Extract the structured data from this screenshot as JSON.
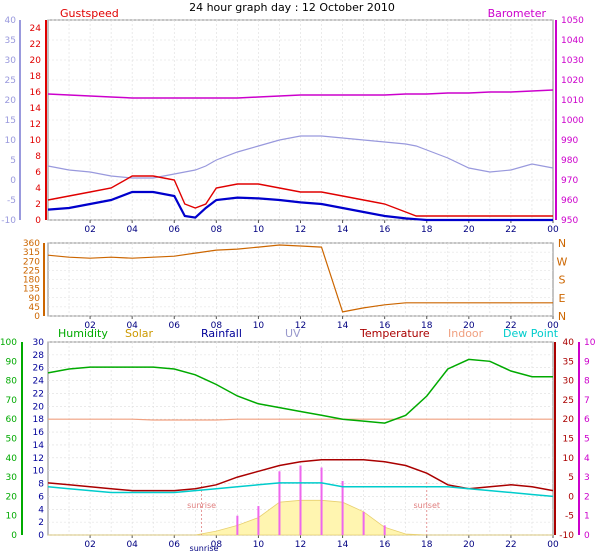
{
  "title": "24 hour graph day : 12 October 2010",
  "colors": {
    "gust": "#e00000",
    "wind": "#0000cc",
    "baro": "#cc00cc",
    "temp_blue_axis": "#9999dd",
    "wdir": "#cc6600",
    "humidity": "#00aa00",
    "solar": "#cc9900",
    "rainfall": "#000099",
    "uv": "#9999cc",
    "temperature": "#aa0000",
    "indoor": "#f0a080",
    "dewpoint": "#00cccc",
    "uv_axis": "#cc00cc",
    "grid": "#dddddd"
  },
  "chart_data": [
    {
      "type": "line",
      "title": "24 hour graph day : 12 October 2010",
      "legend": [
        "Gustspeed",
        "Barometer"
      ],
      "x": [
        0,
        1,
        2,
        3,
        4,
        5,
        6,
        6.5,
        7,
        7.5,
        8,
        9,
        10,
        11,
        12,
        13,
        14,
        15,
        16,
        17,
        17.5,
        18,
        19,
        20,
        21,
        22,
        23,
        24
      ],
      "x_ticks": [
        "02",
        "04",
        "06",
        "08",
        "10",
        "12",
        "14",
        "16",
        "18",
        "20",
        "22",
        "00"
      ],
      "left_axis_a": {
        "ticks": [
          -10,
          -5,
          0,
          5,
          10,
          15,
          20,
          25,
          30,
          35,
          40
        ],
        "ylim": [
          -10,
          40
        ]
      },
      "left_axis_b": {
        "ticks": [
          0,
          2,
          4,
          6,
          8,
          10,
          12,
          14,
          16,
          18,
          20,
          22,
          24
        ],
        "ylim": [
          0,
          25
        ]
      },
      "right_axis": {
        "ticks": [
          950,
          960,
          970,
          980,
          990,
          1000,
          1010,
          1020,
          1030,
          1040,
          1050
        ],
        "ylim": [
          950,
          1050
        ]
      },
      "series": [
        {
          "name": "Gustspeed",
          "values": [
            2.5,
            3,
            3.5,
            4,
            5.5,
            5.5,
            5,
            2,
            1.5,
            2,
            4,
            4.5,
            4.5,
            4,
            3.5,
            3.5,
            3,
            2.5,
            2,
            1,
            0.5,
            0.5,
            0.5,
            0.5,
            0.5,
            0.5,
            0.5,
            0.5
          ]
        },
        {
          "name": "Wind",
          "values": [
            1.3,
            1.5,
            2,
            2.5,
            3.5,
            3.5,
            3,
            0.5,
            0.3,
            1.5,
            2.5,
            2.8,
            2.7,
            2.5,
            2.2,
            2,
            1.5,
            1,
            0.5,
            0.2,
            0.1,
            0,
            0,
            0,
            0,
            0,
            0,
            0
          ]
        },
        {
          "name": "Temperature",
          "values": [
            3.5,
            2.5,
            2,
            1,
            0.5,
            0.5,
            1.5,
            2,
            2.5,
            3.5,
            5,
            7,
            8.5,
            10,
            11,
            11,
            10.5,
            10,
            9.5,
            9,
            8.5,
            7.5,
            5.5,
            3,
            2,
            2.5,
            4,
            3
          ]
        },
        {
          "name": "Barometer",
          "values": [
            1013,
            1012.5,
            1012,
            1011.5,
            1011,
            1011,
            1011,
            1011,
            1011,
            1011,
            1011,
            1011,
            1011.5,
            1012,
            1012.5,
            1012.5,
            1012.5,
            1012.5,
            1012.5,
            1013,
            1013,
            1013,
            1013.5,
            1013.5,
            1014,
            1014,
            1014.5,
            1015
          ]
        }
      ]
    },
    {
      "type": "line",
      "legend": [
        "N",
        "W",
        "S",
        "E",
        "N"
      ],
      "x": [
        0,
        1,
        2,
        3,
        4,
        5,
        6,
        7,
        8,
        9,
        10,
        11,
        12,
        13,
        14,
        15,
        16,
        17,
        18,
        19,
        20,
        21,
        22,
        23,
        24
      ],
      "x_ticks": [
        "02",
        "04",
        "06",
        "08",
        "10",
        "12",
        "14",
        "16",
        "18",
        "20",
        "22",
        "00"
      ],
      "left_axis": {
        "ticks": [
          0,
          45,
          90,
          135,
          180,
          225,
          270,
          315,
          360
        ],
        "ylim": [
          0,
          360
        ]
      },
      "right_axis": {
        "ticks": [
          "N",
          "W",
          "S",
          "E",
          "N"
        ]
      },
      "series": [
        {
          "name": "Wind direction",
          "values": [
            300,
            290,
            285,
            290,
            285,
            290,
            295,
            310,
            325,
            330,
            340,
            350,
            345,
            340,
            20,
            40,
            55,
            65,
            65,
            65,
            65,
            65,
            65,
            65,
            65
          ]
        }
      ]
    },
    {
      "type": "line",
      "legend": [
        "Humidity",
        "Solar",
        "Rainfall",
        "UV",
        "Temperature",
        "Indoor",
        "Dew Point"
      ],
      "x": [
        0,
        1,
        2,
        3,
        4,
        5,
        6,
        7,
        8,
        9,
        10,
        11,
        12,
        13,
        14,
        15,
        16,
        17,
        18,
        19,
        20,
        21,
        22,
        23,
        24
      ],
      "x_ticks": [
        "02",
        "04",
        "06",
        "08",
        "10",
        "12",
        "14",
        "16",
        "18",
        "20",
        "22",
        "00"
      ],
      "x_markers": [
        "sunrise",
        "sunset"
      ],
      "left_axis_a": {
        "ticks": [
          0,
          10,
          20,
          30,
          40,
          50,
          60,
          70,
          80,
          90,
          100
        ],
        "ylim": [
          0,
          100
        ]
      },
      "left_axis_b": {
        "ticks": [
          0,
          2,
          4,
          6,
          8,
          10,
          12,
          14,
          16,
          18,
          20,
          22,
          24,
          26,
          28,
          30
        ],
        "ylim": [
          0,
          30
        ]
      },
      "right_axis_a": {
        "ticks": [
          -10,
          -5,
          0,
          5,
          10,
          15,
          20,
          25,
          30,
          35,
          40
        ],
        "ylim": [
          -10,
          40
        ]
      },
      "right_axis_b": {
        "ticks": [
          0,
          1,
          2,
          3,
          4,
          5,
          6,
          7,
          8,
          9,
          10
        ],
        "ylim": [
          0,
          10
        ]
      },
      "series": [
        {
          "name": "Humidity",
          "values": [
            84,
            86,
            87,
            87,
            87,
            87,
            86,
            83,
            78,
            72,
            68,
            66,
            64,
            62,
            60,
            59,
            58,
            62,
            72,
            86,
            91,
            90,
            85,
            82,
            82
          ]
        },
        {
          "name": "Solar",
          "values": [
            0,
            0,
            0,
            0,
            0,
            0,
            0,
            0,
            20,
            50,
            90,
            170,
            180,
            180,
            170,
            120,
            40,
            5,
            0,
            0,
            0,
            0,
            0,
            0,
            0
          ]
        },
        {
          "name": "UV",
          "values": [
            0,
            0,
            0,
            0,
            0,
            0,
            0,
            0,
            0,
            1,
            1.5,
            3.3,
            3.6,
            3.5,
            2.8,
            1.2,
            0.5,
            0,
            0,
            0,
            0,
            0,
            0,
            0,
            0
          ]
        },
        {
          "name": "Temperature",
          "values": [
            3.5,
            3,
            2.5,
            2,
            1.5,
            1.5,
            1.5,
            2,
            3,
            5,
            6.5,
            8,
            9,
            9.5,
            9.5,
            9.5,
            9,
            8,
            6,
            3,
            2,
            2.5,
            3,
            2.5,
            1.5
          ]
        },
        {
          "name": "Indoor",
          "values": [
            20,
            20,
            20,
            20,
            20,
            19.8,
            19.8,
            19.8,
            19.8,
            20,
            20,
            20,
            20,
            20,
            20,
            20,
            20,
            20,
            20,
            20,
            20,
            20,
            20,
            20,
            20
          ]
        },
        {
          "name": "Dew Point",
          "values": [
            2.5,
            2,
            1.5,
            1,
            1,
            1,
            1,
            1.5,
            2,
            2.5,
            3,
            3.5,
            3.5,
            3.5,
            2.5,
            2.5,
            2.5,
            2.5,
            2.5,
            2.5,
            2,
            1.5,
            1,
            0.5,
            0
          ]
        }
      ]
    }
  ],
  "panel3_legend_labels": {
    "humidity": "Humidity",
    "solar": "Solar",
    "rainfall": "Rainfall",
    "uv": "UV",
    "temperature": "Temperature",
    "indoor": "Indoor",
    "dewpoint": "Dew Point"
  },
  "panel1_legend_labels": {
    "gust": "Gustspeed",
    "baro": "Barometer"
  },
  "sun_markers": {
    "sunrise": "sunrise",
    "sunset": "sunset"
  },
  "bottom_left_label": "sunrise"
}
